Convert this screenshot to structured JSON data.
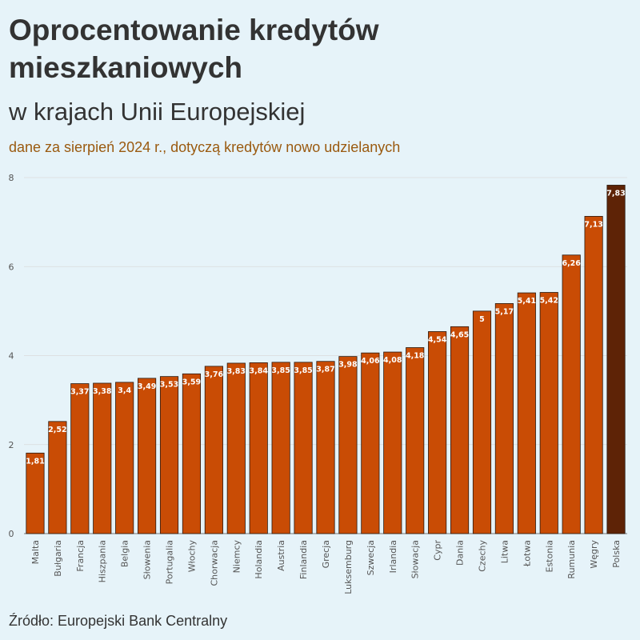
{
  "header": {
    "title": "Oprocentowanie kredytów mieszkaniowych",
    "subtitle": "w krajach Unii Europejskiej",
    "note": "dane za sierpień 2024 r., dotyczą kredytów nowo udzielanych"
  },
  "footer": {
    "source": "Źródło: Europejski Bank Centralny"
  },
  "colors": {
    "bar": "#c94c05",
    "bar_highlight": "#5e2306",
    "bar_stroke": "#2a1a10",
    "grid": "#dadada",
    "axis": "#777777"
  },
  "chart_data": {
    "type": "bar",
    "title": "Oprocentowanie kredytów mieszkaniowych",
    "subtitle": "w krajach Unii Europejskiej",
    "xlabel": "",
    "ylabel": "",
    "ylim": [
      0,
      8
    ],
    "yticks": [
      0,
      2,
      4,
      6,
      8
    ],
    "grid": true,
    "legend": "none",
    "highlight": "Polska",
    "categories": [
      "Malta",
      "Bułgaria",
      "Francja",
      "Hiszpania",
      "Belgia",
      "Słowenia",
      "Portugalia",
      "Włochy",
      "Chorwacja",
      "Niemcy",
      "Holandia",
      "Austria",
      "Finlandia",
      "Grecja",
      "Luksemburg",
      "Szwecja",
      "Irlandia",
      "Słowacja",
      "Cypr",
      "Dania",
      "Czechy",
      "Litwa",
      "Łotwa",
      "Estonia",
      "Rumunia",
      "Węgry",
      "Polska"
    ],
    "values": [
      1.81,
      2.52,
      3.37,
      3.38,
      3.4,
      3.49,
      3.53,
      3.59,
      3.76,
      3.83,
      3.84,
      3.85,
      3.85,
      3.87,
      3.98,
      4.06,
      4.08,
      4.18,
      4.54,
      4.65,
      5,
      5.17,
      5.41,
      5.42,
      6.26,
      7.13,
      7.83
    ],
    "value_labels": [
      "1,81",
      "2,52",
      "3,37",
      "3,38",
      "3,4",
      "3,49",
      "3,53",
      "3,59",
      "3,76",
      "3,83",
      "3,84",
      "3,85",
      "3,85",
      "3,87",
      "3,98",
      "4,06",
      "4,08",
      "4,18",
      "4,54",
      "4,65",
      "5",
      "5,17",
      "5,41",
      "5,42",
      "6,26",
      "7,13",
      "7,83"
    ]
  }
}
